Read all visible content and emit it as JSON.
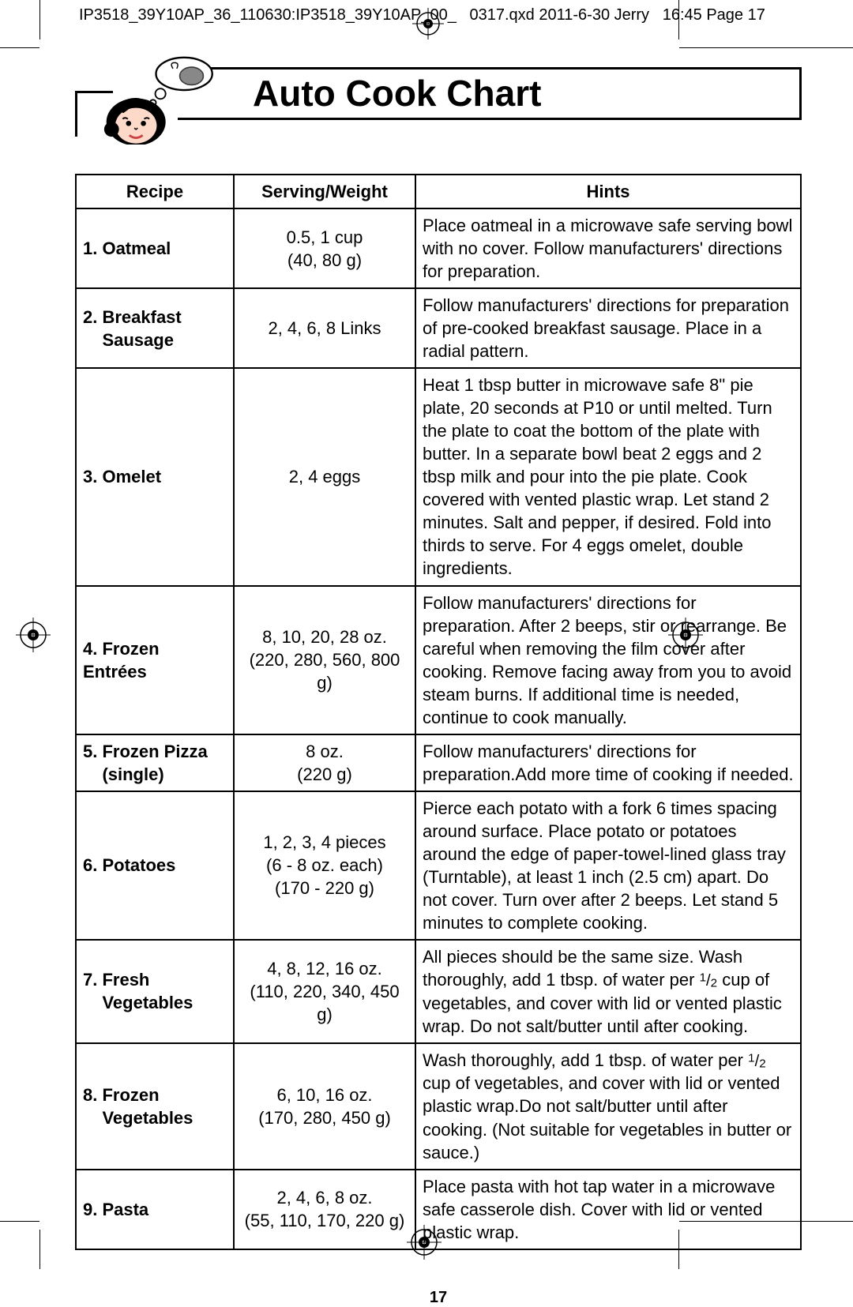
{
  "print_header": "IP3518_39Y10AP_36_110630:IP3518_39Y10AP_00_   0317.qxd  2011-6-30  Jerry    16:45  Page 17",
  "title": "Auto Cook Chart",
  "page_number": "17",
  "columns": {
    "recipe": "Recipe",
    "serving": "Serving/Weight",
    "hints": "Hints"
  },
  "col_widths": {
    "recipe": 200,
    "serving": 230
  },
  "border_color": "#000000",
  "background_color": "#ffffff",
  "font_size_body": 22,
  "font_size_title": 46,
  "rows": [
    {
      "recipe": "1. Oatmeal",
      "serving_l1": "0.5, 1 cup",
      "serving_l2": "(40, 80 g)",
      "hints": "Place oatmeal in a microwave safe serving bowl with no cover. Follow manufacturers' directions for preparation."
    },
    {
      "recipe": "2. Breakfast Sausage",
      "recipe_l1": "2. Breakfast",
      "recipe_l2": "Sausage",
      "serving_l1": "2, 4, 6, 8 Links",
      "serving_l2": "",
      "hints": "Follow manufacturers' directions for preparation of pre-cooked breakfast sausage. Place in a radial pattern."
    },
    {
      "recipe": "3. Omelet",
      "serving_l1": "2, 4 eggs",
      "serving_l2": "",
      "hints": "Heat 1 tbsp butter in microwave safe 8\" pie plate, 20 seconds at P10 or until melted. Turn the plate to coat the bottom of the plate with butter. In a separate bowl beat 2 eggs and 2 tbsp milk and pour into the pie plate. Cook covered with vented plastic wrap. Let stand 2 minutes. Salt and pepper, if desired. Fold into thirds to serve. For 4 eggs omelet, double ingredients."
    },
    {
      "recipe": "4. Frozen Entrées",
      "serving_l1": "8, 10, 20, 28 oz.",
      "serving_l2": "(220, 280, 560, 800 g)",
      "hints": "Follow manufacturers' directions for preparation. After 2 beeps, stir or rearrange. Be careful when removing the film cover after cooking. Remove facing away from you to avoid steam burns. If additional time is needed, continue to cook manually."
    },
    {
      "recipe": "5. Frozen Pizza (single)",
      "recipe_l1": "5. Frozen Pizza",
      "recipe_l2": "(single)",
      "serving_l1": "8 oz.",
      "serving_l2": "(220 g)",
      "hints": "Follow manufacturers' directions for preparation.Add more time of cooking if needed."
    },
    {
      "recipe": "6. Potatoes",
      "serving_l1": "1, 2, 3, 4 pieces",
      "serving_l2": "(6 - 8 oz. each)",
      "serving_l3": "(170 - 220 g)",
      "hints": "Pierce each potato with a fork 6 times spacing around surface. Place potato or potatoes around the edge of paper-towel-lined glass tray (Turntable), at least 1 inch (2.5 cm) apart. Do not cover. Turn over after 2 beeps. Let stand 5 minutes to complete cooking."
    },
    {
      "recipe": "7. Fresh Vegetables",
      "recipe_l1": "7. Fresh",
      "recipe_l2": "Vegetables",
      "serving_l1": "4, 8, 12, 16 oz.",
      "serving_l2": "(110, 220, 340, 450 g)",
      "hints_html": "All pieces should be the same size. Wash thoroughly, add 1 tbsp. of water per <span class='frac'><span class='n'>1</span>/<span class='d'>2</span></span> cup of vegetables, and cover with lid or vented plastic wrap. Do not salt/butter until after cooking."
    },
    {
      "recipe": "8. Frozen Vegetables",
      "recipe_l1": "8. Frozen",
      "recipe_l2": "Vegetables",
      "serving_l1": "6, 10, 16 oz.",
      "serving_l2": "(170, 280, 450 g)",
      "hints_html": "Wash thoroughly, add 1 tbsp. of water per <span class='frac'><span class='n'>1</span>/<span class='d'>2</span></span> cup of vegetables, and cover with lid or vented plastic wrap.Do not salt/butter until after cooking. (Not suitable for vegetables in butter or sauce.)"
    },
    {
      "recipe": "9. Pasta",
      "serving_l1": "2, 4, 6, 8 oz.",
      "serving_l2": "(55, 110, 170, 220 g)",
      "hints": "Place pasta with hot tap water in a microwave safe casserole dish. Cover with lid or vented plastic wrap."
    }
  ]
}
